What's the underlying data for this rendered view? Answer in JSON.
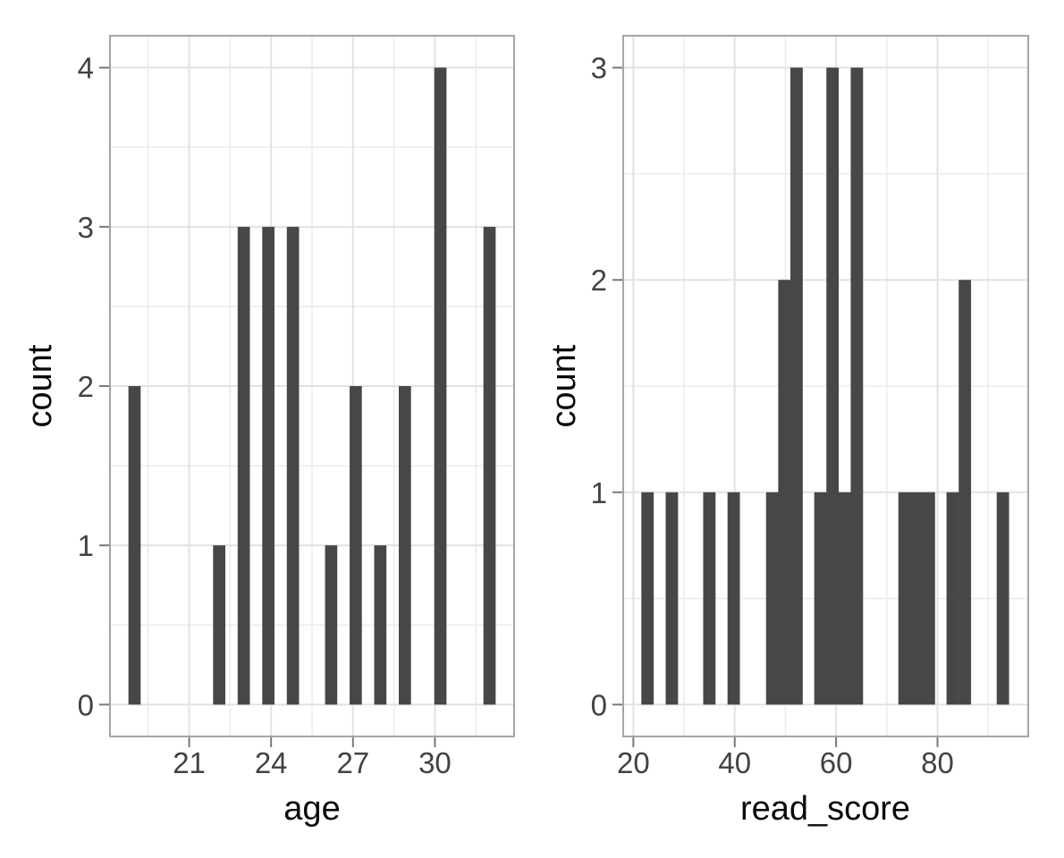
{
  "figure_type": "side-by-side ggplot-style histograms",
  "style": {
    "bar_fill": "#474747",
    "grid_major": "#e2e2e2",
    "grid_minor": "#ececec",
    "panel_border": "#a5a5a5",
    "tick_mark_color": "#787878",
    "tick_label_color": "#424242",
    "axis_title_color": "#0a0a0a",
    "background": "#ffffff"
  },
  "chart_data": [
    {
      "type": "bar",
      "variant": "histogram",
      "title": "",
      "xlabel": "age",
      "ylabel": "count",
      "xlim": [
        18.1,
        32.9
      ],
      "ylim": [
        -0.2,
        4.2
      ],
      "x_ticks": [
        21,
        24,
        27,
        30
      ],
      "y_ticks": [
        0,
        1,
        2,
        3,
        4
      ],
      "grid": true,
      "legend": false,
      "binwidth": 0.448,
      "bins": [
        {
          "x": 19.0,
          "count": 2
        },
        {
          "x": 22.1,
          "count": 1
        },
        {
          "x": 23.0,
          "count": 3
        },
        {
          "x": 23.9,
          "count": 3
        },
        {
          "x": 24.8,
          "count": 3
        },
        {
          "x": 26.2,
          "count": 1
        },
        {
          "x": 27.1,
          "count": 2
        },
        {
          "x": 28.0,
          "count": 1
        },
        {
          "x": 28.9,
          "count": 2
        },
        {
          "x": 30.2,
          "count": 4
        },
        {
          "x": 32.0,
          "count": 3
        }
      ]
    },
    {
      "type": "bar",
      "variant": "histogram",
      "title": "",
      "xlabel": "read_score",
      "ylabel": "count",
      "xlim": [
        18.0,
        97.9
      ],
      "ylim": [
        -0.15,
        3.15
      ],
      "x_ticks": [
        20,
        40,
        60,
        80
      ],
      "y_ticks": [
        0,
        1,
        2,
        3
      ],
      "grid": true,
      "legend": false,
      "binwidth": 2.44,
      "bins": [
        {
          "x": 22.8,
          "count": 1
        },
        {
          "x": 27.6,
          "count": 1
        },
        {
          "x": 35.0,
          "count": 1
        },
        {
          "x": 39.8,
          "count": 1
        },
        {
          "x": 47.4,
          "count": 1
        },
        {
          "x": 49.8,
          "count": 2
        },
        {
          "x": 52.2,
          "count": 3
        },
        {
          "x": 56.9,
          "count": 1
        },
        {
          "x": 59.3,
          "count": 3
        },
        {
          "x": 61.7,
          "count": 1
        },
        {
          "x": 64.1,
          "count": 3
        },
        {
          "x": 73.5,
          "count": 1
        },
        {
          "x": 75.9,
          "count": 1
        },
        {
          "x": 78.3,
          "count": 1
        },
        {
          "x": 83.0,
          "count": 1
        },
        {
          "x": 85.4,
          "count": 2
        },
        {
          "x": 92.9,
          "count": 1
        }
      ]
    }
  ]
}
